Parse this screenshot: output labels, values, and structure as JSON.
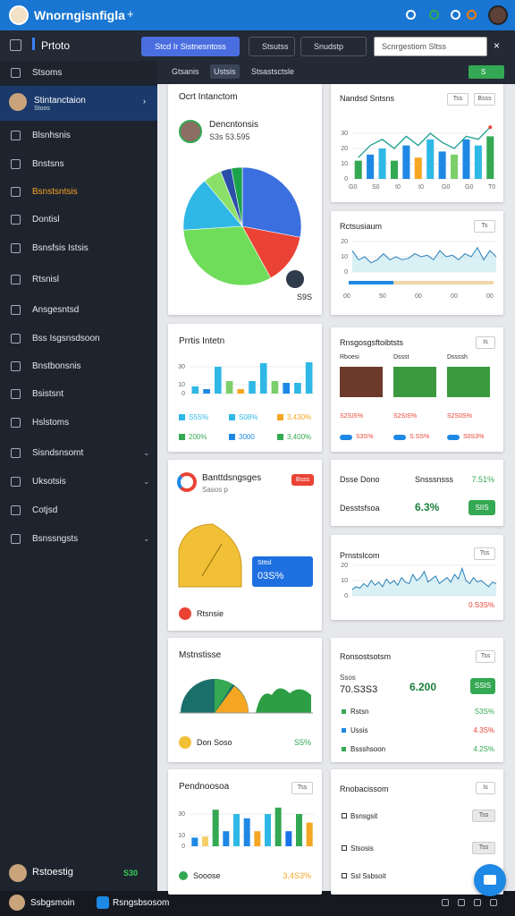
{
  "topbar": {
    "title": "Wnorngisnfigla"
  },
  "toolbar": {
    "logo": "Prtoto",
    "primary_button": "Stcd Ir Sistnesntoss",
    "filters": [
      "Stsutss",
      "Snudstp"
    ],
    "search": "Scnrgestiom Sltss"
  },
  "sidebar": {
    "items": [
      {
        "label": "Stsoms"
      },
      {
        "label": "Stintanctaion",
        "sub": "Stoos"
      },
      {
        "label": "Blsnhsnis"
      },
      {
        "label": "Bnstsns"
      },
      {
        "label": "Bsnstsntsis",
        "color": "#f5a623"
      },
      {
        "label": "Dontisl"
      },
      {
        "label": "Bsnsfsis Istsis"
      },
      {
        "label": "Rtsnisl"
      },
      {
        "label": "Ansgesntsd"
      },
      {
        "label": "Bss Isgsnsdsoon"
      },
      {
        "label": "Bnstbonsnis"
      },
      {
        "label": "Bsistsnt"
      },
      {
        "label": "Hslstoms"
      },
      {
        "label": "Sisndsnsomt",
        "expandable": true
      },
      {
        "label": "Uksotsis",
        "expandable": true
      },
      {
        "label": "Cotjsd"
      },
      {
        "label": "Bsnssngsts",
        "expandable": true
      }
    ],
    "user": "Rstoestig",
    "user_badge": "S30"
  },
  "tabs": [
    "Gtsanis",
    "Ustsis",
    "Stsastsctsle"
  ],
  "tab_action": "S",
  "left": [
    {
      "title": "Ocrt Intanctom",
      "name": "Dencntonsis",
      "amount": "S3s 53.595",
      "badge": "S9S",
      "chart": {
        "type": "pie",
        "values": [
          28,
          14,
          32,
          15,
          5,
          3,
          3
        ],
        "colors": [
          "#3b6fe0",
          "#ea4335",
          "#6fdc5a",
          "#2fb8e6",
          "#8be06a",
          "#2b4fa8",
          "#1aa34a"
        ]
      }
    },
    {
      "title": "Prrtis Intetn",
      "chart": {
        "type": "bar",
        "ylim": [
          0,
          40
        ],
        "yticks": [
          0,
          10,
          30
        ],
        "values": [
          8,
          5,
          30,
          14,
          5,
          14,
          34,
          14,
          12,
          12,
          35
        ],
        "colors": [
          "#2fb8e6",
          "#1e88e5",
          "#2fb8e6",
          "#7ccf6a",
          "#f5a623",
          "#2fb8e6",
          "#2fb8e6",
          "#7ccf6a",
          "#1e88e5",
          "#2fb8e6",
          "#2fb8e6"
        ]
      },
      "stats": [
        {
          "text": "S5S%",
          "color": "#2fb8e6"
        },
        {
          "text": "S08%",
          "color": "#2fb8e6"
        },
        {
          "text": "3,430%",
          "color": "#f5a623"
        },
        {
          "text": "200%",
          "color": "#34a853"
        },
        {
          "text": "3000",
          "color": "#1e88e5"
        },
        {
          "text": "3,400%",
          "color": "#34a853"
        }
      ]
    },
    {
      "title": "Banttdsngsges",
      "subtitle": "Sasos p",
      "badge": "Bsss",
      "box_title": "Stttsl",
      "box_value": "03S%",
      "footer": "Rtsnsie"
    },
    {
      "title": "Mstnstisse",
      "footer": "Don Soso",
      "footer_value": "S5%"
    },
    {
      "title": "Pendnoosoa",
      "button": "Tss",
      "chart": {
        "type": "bar",
        "ylim": [
          0,
          40
        ],
        "yticks": [
          0,
          10,
          30
        ],
        "values": [
          8,
          9,
          34,
          14,
          30,
          26,
          14,
          30,
          36,
          14,
          30,
          22
        ],
        "colors": [
          "#1e88e5",
          "#f5d06a",
          "#34a853",
          "#1e88e5",
          "#2fb8e6",
          "#1e88e5",
          "#f5a623",
          "#2fb8e6",
          "#34a853",
          "#1a73e8",
          "#34a853",
          "#f5a623"
        ]
      },
      "footer": "Sooose",
      "footer_value": "3,4S3%"
    }
  ],
  "right": [
    {
      "title": "Nandsd Sntsns",
      "buttons": [
        "Tss",
        "Bsss"
      ],
      "chart": {
        "type": "bar_line",
        "ylim": [
          0,
          40
        ],
        "yticks": [
          0,
          10,
          20,
          30
        ],
        "values": [
          12,
          16,
          20,
          12,
          22,
          14,
          26,
          18,
          16,
          26,
          22,
          28
        ],
        "line": [
          14,
          22,
          26,
          20,
          28,
          22,
          30,
          24,
          20,
          28,
          26,
          34
        ],
        "colors": [
          "#34a853",
          "#1e88e5",
          "#2fb8e6",
          "#34a853",
          "#1e88e5",
          "#f5a623",
          "#2fb8e6",
          "#1e88e5",
          "#7ccf6a",
          "#1e88e5",
          "#2fb8e6",
          "#34a853"
        ]
      },
      "xlabels": [
        "G0",
        "S0",
        "I0",
        "I0",
        "G0",
        "G0",
        "T0"
      ]
    },
    {
      "title": "Rctsusiaum",
      "button": "Ts",
      "chart": {
        "type": "line",
        "ylim": [
          0,
          20
        ],
        "yticks": [
          0,
          10,
          20
        ],
        "values": [
          14,
          8,
          10,
          6,
          8,
          12,
          8,
          10,
          8,
          9,
          12,
          10,
          11,
          8,
          14,
          10,
          11,
          8,
          12,
          10,
          16,
          8,
          14,
          10
        ]
      },
      "xlabels": [
        "00",
        "50",
        "00",
        "00",
        "00"
      ]
    },
    {
      "title": "Rnsgosgsftoibtsts",
      "button": "Is",
      "people": [
        {
          "name": "Rboesi",
          "sub": "S2SIS%"
        },
        {
          "name": "Dssst",
          "sub": "S2SIS%"
        },
        {
          "name": "Dssssh",
          "sub": "S2S0S%"
        }
      ],
      "stats": [
        "S2SIS%",
        "S2SIS%",
        "S2S0S%",
        "S3S%",
        "S.SS%",
        "S0S3%"
      ]
    },
    {
      "rows": [
        {
          "label": "Dsse Dono",
          "sub": "Snsssnsss",
          "value": "7.51%"
        },
        {
          "label": "Desstsfsoa",
          "value": "6.3%",
          "button": "SIIS"
        }
      ]
    },
    {
      "title": "Prnstslcom",
      "button": "Tss",
      "chart": {
        "type": "line",
        "ylim": [
          0,
          20
        ],
        "yticks": [
          0,
          10,
          20
        ],
        "values": [
          4,
          6,
          5,
          8,
          6,
          10,
          7,
          9,
          6,
          11,
          8,
          10,
          7,
          12,
          9,
          8,
          14,
          10,
          12,
          16,
          9,
          11,
          13,
          8,
          10,
          12,
          9,
          14,
          11,
          18,
          10,
          8,
          12,
          9,
          10,
          8,
          6,
          9,
          8
        ]
      },
      "footer": "0.S3S%"
    },
    {
      "title": "Ronsostsotsm",
      "button": "Tss",
      "label": "Ssos",
      "amount": "70.S3S3",
      "value": "6.200",
      "badge": "SSIS",
      "rows": [
        {
          "label": "Rstsn",
          "value": "S3S%",
          "color": "#34a853"
        },
        {
          "label": "Ussis",
          "value": "4.3S%",
          "color": "#1e88e5"
        },
        {
          "label": "Bssshsoon",
          "value": "4.2S%",
          "color": "#34a853"
        }
      ]
    },
    {
      "title": "Rnobacissom",
      "button": "Is",
      "rows": [
        {
          "label": "Bsnsgsit",
          "button": "Tss"
        },
        {
          "label": "Stsosis",
          "button": "Tss"
        },
        {
          "label": "Ssl Ssbsoit"
        }
      ]
    }
  ],
  "statusbar": {
    "user": "Ssbgsmoin",
    "app": "Rsngsbsosom"
  }
}
